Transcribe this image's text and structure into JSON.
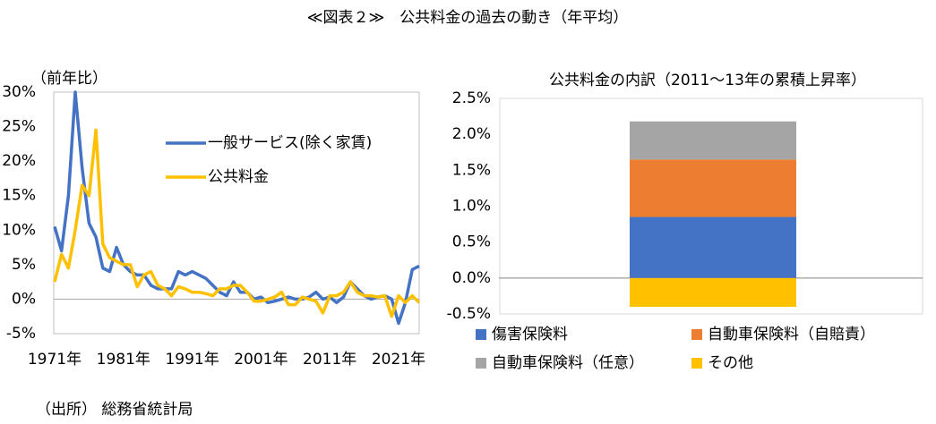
{
  "title": "≪図表２≫　公共料金の過去の動き（年平均）",
  "source": "（出所） 総務省統計局",
  "chart_data": [
    {
      "type": "line",
      "y_label": "（前年比）",
      "x": [
        1971,
        1972,
        1973,
        1974,
        1975,
        1976,
        1977,
        1978,
        1979,
        1980,
        1981,
        1982,
        1983,
        1984,
        1985,
        1986,
        1987,
        1988,
        1989,
        1990,
        1991,
        1992,
        1993,
        1994,
        1995,
        1996,
        1997,
        1998,
        1999,
        2000,
        2001,
        2002,
        2003,
        2004,
        2005,
        2006,
        2007,
        2008,
        2009,
        2010,
        2011,
        2012,
        2013,
        2014,
        2015,
        2016,
        2017,
        2018,
        2019,
        2020,
        2021,
        2022,
        2023,
        2024
      ],
      "series": [
        {
          "name": "一般サービス(除く家賃)",
          "color": "#4472c4",
          "values": [
            10.5,
            7,
            15,
            30,
            19,
            11,
            9,
            4.5,
            4,
            7.5,
            5,
            4,
            3.5,
            3.5,
            2,
            1.5,
            1.5,
            1.5,
            4,
            3.5,
            4,
            3.5,
            3,
            2,
            1,
            0.5,
            2.5,
            1,
            1,
            0,
            0.3,
            -0.5,
            -0.3,
            0,
            0.3,
            0,
            0,
            0.3,
            1,
            0,
            0.3,
            -0.5,
            0.3,
            2.5,
            1.5,
            0.5,
            0,
            0.3,
            0.5,
            0,
            -3.5,
            -0.5,
            4.3,
            4.8
          ]
        },
        {
          "name": "公共料金",
          "color": "#ffc000",
          "values": [
            2.5,
            6.5,
            4.5,
            10,
            16.5,
            15,
            24.5,
            8,
            6,
            5.5,
            5,
            5,
            1.8,
            3.5,
            4,
            2,
            1.5,
            0.5,
            1.8,
            1.5,
            1,
            1,
            0.8,
            0.5,
            1.5,
            1.5,
            2,
            2,
            1,
            -0.3,
            -0.3,
            0,
            0.3,
            1,
            -0.8,
            -0.8,
            0.3,
            0,
            -0.3,
            -2,
            0.5,
            0.5,
            1,
            2.5,
            1,
            0.5,
            0.5,
            0.3,
            0.5,
            -2.5,
            0.5,
            -0.5,
            0.5,
            -0.5
          ]
        }
      ],
      "xlim": [
        1971,
        2024
      ],
      "xticks": [
        {
          "value": 1971,
          "label": "1971年"
        },
        {
          "value": 1981,
          "label": "1981年"
        },
        {
          "value": 1991,
          "label": "1991年"
        },
        {
          "value": 2001,
          "label": "2001年"
        },
        {
          "value": 2011,
          "label": "2011年"
        },
        {
          "value": 2021,
          "label": "2021年"
        }
      ],
      "ylim": [
        -5,
        30
      ],
      "yticks": [
        {
          "value": -5,
          "label": "-5%"
        },
        {
          "value": 0,
          "label": "0%"
        },
        {
          "value": 5,
          "label": "5%"
        },
        {
          "value": 10,
          "label": "10%"
        },
        {
          "value": 15,
          "label": "15%"
        },
        {
          "value": 20,
          "label": "20%"
        },
        {
          "value": 25,
          "label": "25%"
        },
        {
          "value": 30,
          "label": "30%"
        }
      ],
      "grid": false,
      "legend": "inside-top"
    },
    {
      "type": "stacked_bar",
      "title": "公共料金の内訳（2011〜13年の累積上昇率）",
      "series": [
        {
          "name": "傷害保険料",
          "color": "#4472c4",
          "values": [
            0.85
          ]
        },
        {
          "name": "自動車保険料（自賠責）",
          "color": "#ed7d31",
          "values": [
            0.8
          ]
        },
        {
          "name": "自動車保険料（任意）",
          "color": "#a5a5a5",
          "values": [
            0.53
          ]
        },
        {
          "name": "その他",
          "color": "#ffc000",
          "values": [
            -0.4
          ]
        }
      ],
      "ylim": [
        -0.5,
        2.5
      ],
      "yticks": [
        {
          "value": -0.5,
          "label": "-0.5%"
        },
        {
          "value": 0,
          "label": "0.0%"
        },
        {
          "value": 0.5,
          "label": "0.5%"
        },
        {
          "value": 1,
          "label": "1.0%"
        },
        {
          "value": 1.5,
          "label": "1.5%"
        },
        {
          "value": 2,
          "label": "2.0%"
        },
        {
          "value": 2.5,
          "label": "2.5%"
        }
      ],
      "grid": false,
      "legend": "bottom"
    }
  ]
}
